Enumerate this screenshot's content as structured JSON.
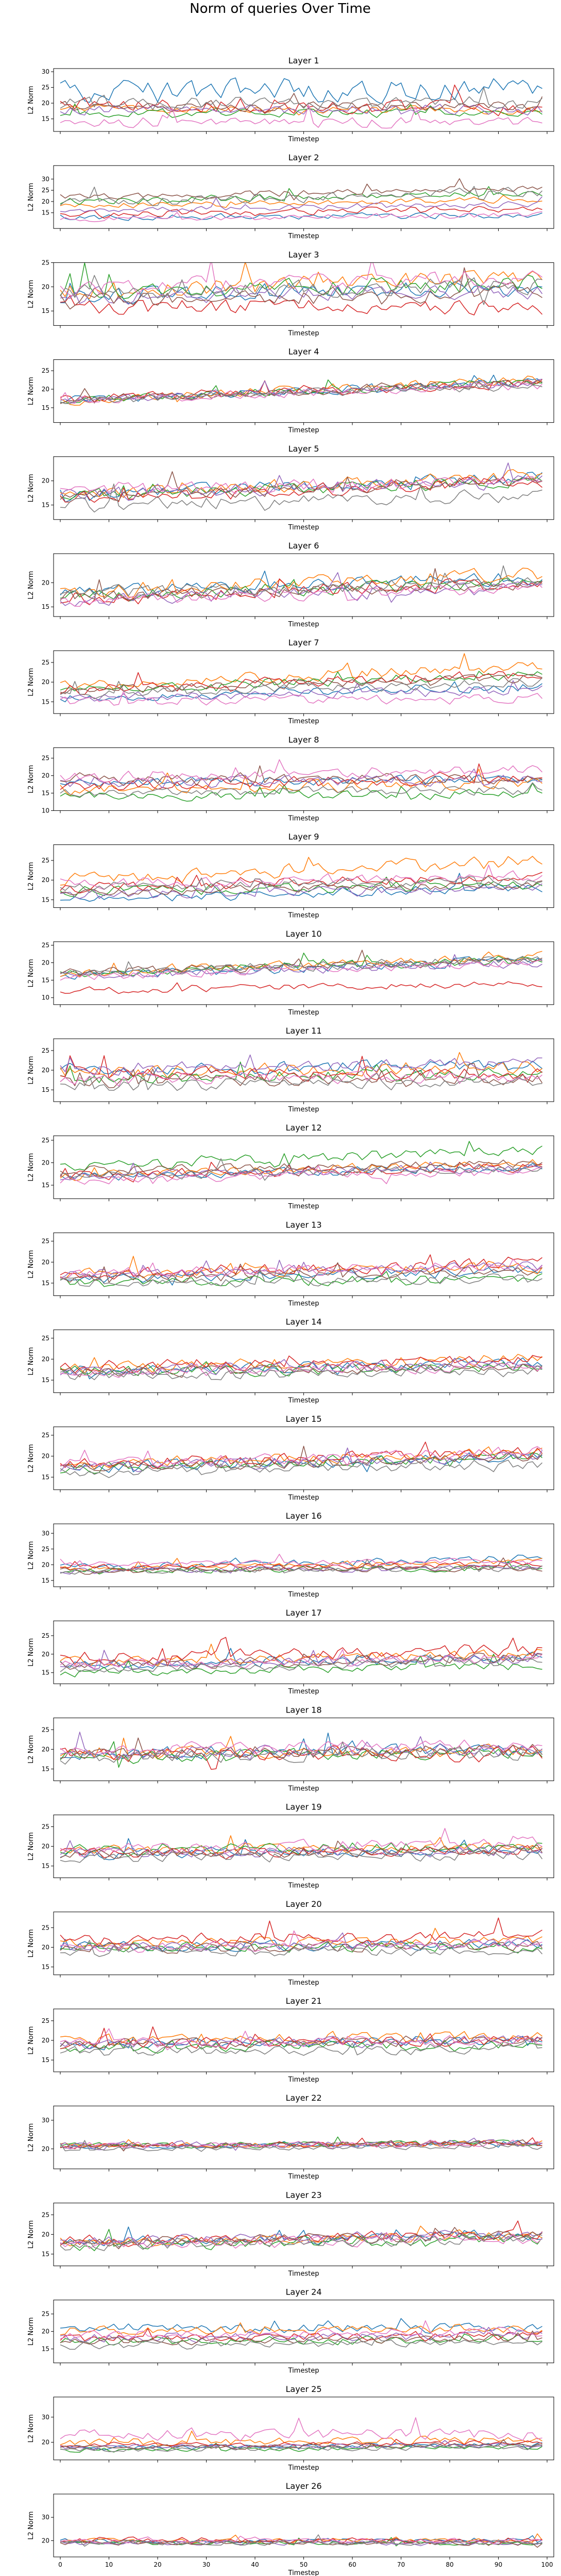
{
  "figure": {
    "title": "Norm of queries Over Time"
  },
  "chart_data": {
    "type": "line",
    "title": "Norm of queries Over Time",
    "x_range": [
      0,
      99
    ],
    "xticks": [
      0,
      10,
      20,
      30,
      40,
      50,
      60,
      70,
      80,
      90,
      100
    ],
    "xlabel": "Timestep",
    "ylabel": "L2 Norm",
    "grid": false,
    "legend": "none",
    "series_colors": [
      "#1f77b4",
      "#ff7f0e",
      "#2ca02c",
      "#d62728",
      "#9467bd",
      "#8c564b",
      "#e377c2",
      "#7f7f7f"
    ],
    "panels": [
      {
        "title": "Layer 1",
        "ylim": [
          11,
          31
        ],
        "yticks": [
          15,
          20,
          25,
          30
        ],
        "levels": [
          24,
          18,
          17,
          20,
          18,
          19,
          14,
          20
        ],
        "amp": [
          5.5,
          2.0,
          2.0,
          3.5,
          2.5,
          2.5,
          2.5,
          3.0
        ],
        "trend": [
          0,
          0,
          0,
          -2,
          0,
          0,
          0,
          0
        ]
      },
      {
        "title": "Layer 2",
        "ylim": [
          8,
          36
        ],
        "yticks": [
          15,
          20,
          25,
          30
        ],
        "levels": [
          13,
          18,
          20,
          14,
          16,
          22,
          12,
          20
        ],
        "amp": [
          2.0,
          2.0,
          2.5,
          2.5,
          2.0,
          2.5,
          2.0,
          3.5
        ],
        "trend": [
          1,
          3,
          4,
          3,
          3,
          4,
          2,
          4
        ]
      },
      {
        "title": "Layer 3",
        "ylim": [
          12,
          25
        ],
        "yticks": [
          15,
          20,
          25
        ],
        "levels": [
          18,
          19,
          19,
          16,
          18,
          17,
          20,
          19
        ],
        "amp": [
          2.5,
          2.5,
          2.5,
          2.5,
          2.5,
          2.5,
          2.5,
          2.5
        ],
        "trend": [
          2,
          3,
          2,
          0,
          1,
          2,
          2,
          1
        ]
      },
      {
        "title": "Layer 4",
        "ylim": [
          11,
          28
        ],
        "yticks": [
          15,
          20,
          25
        ],
        "levels": [
          17,
          17,
          17,
          17,
          17,
          17,
          17,
          17
        ],
        "amp": [
          1.8,
          2.0,
          1.6,
          2.0,
          1.6,
          1.8,
          1.8,
          1.6
        ],
        "trend": [
          5,
          6,
          5,
          5,
          5,
          5,
          4,
          4
        ]
      },
      {
        "title": "Layer 5",
        "ylim": [
          12,
          25
        ],
        "yticks": [
          15,
          20
        ],
        "levels": [
          17,
          17,
          17,
          16,
          17,
          17,
          18,
          15
        ],
        "amp": [
          2.0,
          2.0,
          1.8,
          2.0,
          2.0,
          2.0,
          2.0,
          2.0
        ],
        "trend": [
          4,
          4,
          3,
          4,
          3,
          3,
          2,
          2
        ]
      },
      {
        "title": "Layer 6",
        "ylim": [
          13,
          26
        ],
        "yticks": [
          15,
          20
        ],
        "levels": [
          18,
          18,
          17,
          17,
          16,
          17,
          16,
          18
        ],
        "amp": [
          2.0,
          2.2,
          2.0,
          2.2,
          2.0,
          2.0,
          2.0,
          2.0
        ],
        "trend": [
          3,
          4,
          3,
          3,
          3,
          3,
          3,
          2
        ]
      },
      {
        "title": "Layer 7",
        "ylim": [
          12,
          28
        ],
        "yticks": [
          15,
          20,
          25
        ],
        "levels": [
          16,
          19,
          18,
          18,
          16,
          18,
          15,
          17
        ],
        "amp": [
          1.8,
          2.0,
          1.8,
          2.0,
          1.8,
          1.8,
          1.8,
          1.8
        ],
        "trend": [
          3,
          5,
          4,
          4,
          2,
          3,
          1,
          3
        ]
      },
      {
        "title": "Layer 8",
        "ylim": [
          10,
          28
        ],
        "yticks": [
          10,
          15,
          20,
          25
        ],
        "levels": [
          18,
          16,
          14,
          17,
          18,
          19,
          19,
          15
        ],
        "amp": [
          2.0,
          2.5,
          2.0,
          2.5,
          2.5,
          2.5,
          2.5,
          2.0
        ],
        "trend": [
          1,
          2,
          1,
          2,
          1,
          0,
          3,
          1
        ]
      },
      {
        "title": "Layer 9",
        "ylim": [
          13,
          29
        ],
        "yticks": [
          15,
          20,
          25
        ],
        "levels": [
          15,
          20,
          17,
          18,
          16,
          17,
          19,
          18
        ],
        "amp": [
          1.8,
          2.5,
          1.8,
          2.0,
          1.8,
          1.8,
          2.0,
          2.0
        ],
        "trend": [
          3,
          5,
          2,
          3,
          2,
          2,
          2,
          2
        ]
      },
      {
        "title": "Layer 10",
        "ylim": [
          8,
          26
        ],
        "yticks": [
          10,
          15,
          20,
          25
        ],
        "levels": [
          16,
          17,
          17,
          12,
          16,
          17,
          16,
          17
        ],
        "amp": [
          2.0,
          2.2,
          2.0,
          1.5,
          2.0,
          2.0,
          2.0,
          2.0
        ],
        "trend": [
          5,
          5,
          4,
          2,
          4,
          4,
          4,
          4
        ]
      },
      {
        "title": "Layer 11",
        "ylim": [
          12,
          28
        ],
        "yticks": [
          15,
          20,
          25
        ],
        "levels": [
          20,
          19,
          18,
          19,
          20,
          17,
          18,
          16
        ],
        "amp": [
          2.5,
          2.5,
          2.2,
          2.5,
          2.5,
          2.2,
          2.2,
          2.2
        ],
        "trend": [
          1,
          2,
          1,
          0,
          2,
          1,
          0,
          1
        ]
      },
      {
        "title": "Layer 12",
        "ylim": [
          12,
          26
        ],
        "yticks": [
          15,
          20,
          25
        ],
        "levels": [
          17,
          17,
          19,
          17,
          17,
          18,
          16,
          17
        ],
        "amp": [
          1.5,
          1.5,
          1.8,
          1.6,
          1.5,
          1.5,
          1.5,
          1.5
        ],
        "trend": [
          2,
          3,
          4,
          2,
          2,
          2,
          2,
          2
        ]
      },
      {
        "title": "Layer 13",
        "ylim": [
          12,
          27
        ],
        "yticks": [
          15,
          20,
          25
        ],
        "levels": [
          16,
          17,
          15,
          17,
          17,
          16,
          17,
          15
        ],
        "amp": [
          1.8,
          2.0,
          1.8,
          2.2,
          1.8,
          1.8,
          2.0,
          1.8
        ],
        "trend": [
          2,
          2,
          1,
          3,
          2,
          2,
          2,
          1
        ]
      },
      {
        "title": "Layer 14",
        "ylim": [
          12,
          27
        ],
        "yticks": [
          15,
          20,
          25
        ],
        "levels": [
          17,
          18,
          17,
          18,
          17,
          17,
          17,
          16
        ],
        "amp": [
          2.0,
          2.0,
          2.0,
          2.0,
          2.0,
          2.0,
          2.0,
          2.0
        ],
        "trend": [
          2,
          2,
          1,
          2,
          2,
          1,
          1,
          1
        ]
      },
      {
        "title": "Layer 15",
        "ylim": [
          12,
          27
        ],
        "yticks": [
          15,
          20,
          25
        ],
        "levels": [
          17,
          18,
          17,
          18,
          17,
          17,
          18,
          16
        ],
        "amp": [
          2.0,
          2.0,
          2.0,
          2.2,
          2.0,
          2.0,
          2.0,
          2.0
        ],
        "trend": [
          3,
          3,
          3,
          3,
          3,
          3,
          3,
          2
        ]
      },
      {
        "title": "Layer 16",
        "ylim": [
          13,
          33
        ],
        "yticks": [
          15,
          20,
          25,
          30
        ],
        "levels": [
          19,
          19,
          18,
          19,
          18,
          18,
          20,
          18
        ],
        "amp": [
          1.8,
          1.5,
          1.5,
          1.5,
          1.5,
          1.5,
          1.5,
          1.5
        ],
        "trend": [
          3,
          2,
          1,
          1,
          1,
          1,
          1,
          1
        ]
      },
      {
        "title": "Layer 17",
        "ylim": [
          12,
          29
        ],
        "yticks": [
          15,
          20,
          25
        ],
        "levels": [
          17,
          18,
          15,
          19,
          17,
          17,
          17,
          16
        ],
        "amp": [
          2.0,
          2.0,
          1.8,
          2.5,
          2.0,
          2.0,
          2.0,
          1.8
        ],
        "trend": [
          2,
          2,
          2,
          2,
          2,
          2,
          2,
          2
        ]
      },
      {
        "title": "Layer 18",
        "ylim": [
          12,
          28
        ],
        "yticks": [
          15,
          20,
          25
        ],
        "levels": [
          19,
          19,
          18,
          19,
          19,
          19,
          20,
          18
        ],
        "amp": [
          2.5,
          2.5,
          2.5,
          2.8,
          2.5,
          2.5,
          2.5,
          2.5
        ],
        "trend": [
          1,
          1,
          1,
          0,
          1,
          1,
          1,
          1
        ]
      },
      {
        "title": "Layer 19",
        "ylim": [
          12,
          28
        ],
        "yticks": [
          15,
          20,
          25
        ],
        "levels": [
          18,
          19,
          19,
          18,
          18,
          18,
          19,
          17
        ],
        "amp": [
          2.0,
          2.0,
          2.0,
          2.0,
          2.0,
          2.0,
          2.5,
          2.0
        ],
        "trend": [
          1,
          1,
          1,
          1,
          1,
          1,
          2,
          1
        ]
      },
      {
        "title": "Layer 20",
        "ylim": [
          13,
          29
        ],
        "yticks": [
          15,
          20,
          25
        ],
        "levels": [
          20,
          21,
          20,
          22,
          20,
          20,
          20,
          19
        ],
        "amp": [
          2.0,
          2.0,
          2.0,
          2.2,
          2.0,
          2.0,
          2.0,
          2.0
        ],
        "trend": [
          1,
          1,
          0,
          1,
          1,
          0,
          1,
          0
        ]
      },
      {
        "title": "Layer 21",
        "ylim": [
          12,
          28
        ],
        "yticks": [
          15,
          20,
          25
        ],
        "levels": [
          19,
          20,
          18,
          19,
          19,
          19,
          19,
          17
        ],
        "amp": [
          2.0,
          2.2,
          2.0,
          2.2,
          2.0,
          2.0,
          2.0,
          2.0
        ],
        "trend": [
          1,
          1,
          1,
          1,
          1,
          1,
          1,
          1
        ]
      },
      {
        "title": "Layer 22",
        "ylim": [
          13,
          35
        ],
        "yticks": [
          20,
          30
        ],
        "levels": [
          21,
          21,
          21,
          21,
          21,
          21,
          21,
          20
        ],
        "amp": [
          1.5,
          1.5,
          1.5,
          1.5,
          2.0,
          1.5,
          1.8,
          1.5
        ],
        "trend": [
          1,
          1,
          1,
          1,
          1,
          1,
          1,
          1
        ]
      },
      {
        "title": "Layer 23",
        "ylim": [
          12,
          28
        ],
        "yticks": [
          15,
          20,
          25
        ],
        "levels": [
          18,
          18,
          17,
          18,
          18,
          18,
          17,
          17
        ],
        "amp": [
          2.0,
          2.0,
          2.0,
          2.2,
          2.0,
          2.0,
          2.0,
          2.0
        ],
        "trend": [
          2,
          2,
          2,
          2,
          2,
          2,
          2,
          2
        ]
      },
      {
        "title": "Layer 24",
        "ylim": [
          11,
          29
        ],
        "yticks": [
          15,
          20,
          25
        ],
        "levels": [
          21,
          20,
          17,
          18,
          18,
          17,
          19,
          16
        ],
        "amp": [
          2.0,
          2.0,
          1.8,
          2.0,
          2.0,
          1.8,
          2.0,
          1.8
        ],
        "trend": [
          0,
          1,
          1,
          1,
          1,
          1,
          1,
          1
        ]
      },
      {
        "title": "Layer 25",
        "ylim": [
          13,
          38
        ],
        "yticks": [
          20,
          30
        ],
        "levels": [
          18,
          20,
          17,
          19,
          18,
          18,
          23,
          17
        ],
        "amp": [
          1.5,
          2.5,
          1.5,
          1.5,
          1.5,
          1.5,
          3.5,
          1.5
        ],
        "trend": [
          1,
          1,
          1,
          1,
          1,
          1,
          0,
          1
        ]
      },
      {
        "title": "Layer 26",
        "ylim": [
          13,
          40
        ],
        "yticks": [
          20,
          30
        ],
        "levels": [
          20,
          20,
          19,
          20,
          19,
          19,
          20,
          19
        ],
        "amp": [
          1.5,
          1.5,
          1.5,
          2.0,
          1.5,
          1.5,
          1.5,
          1.5
        ],
        "trend": [
          0,
          0,
          0,
          0,
          0,
          0,
          0,
          0
        ]
      }
    ]
  }
}
